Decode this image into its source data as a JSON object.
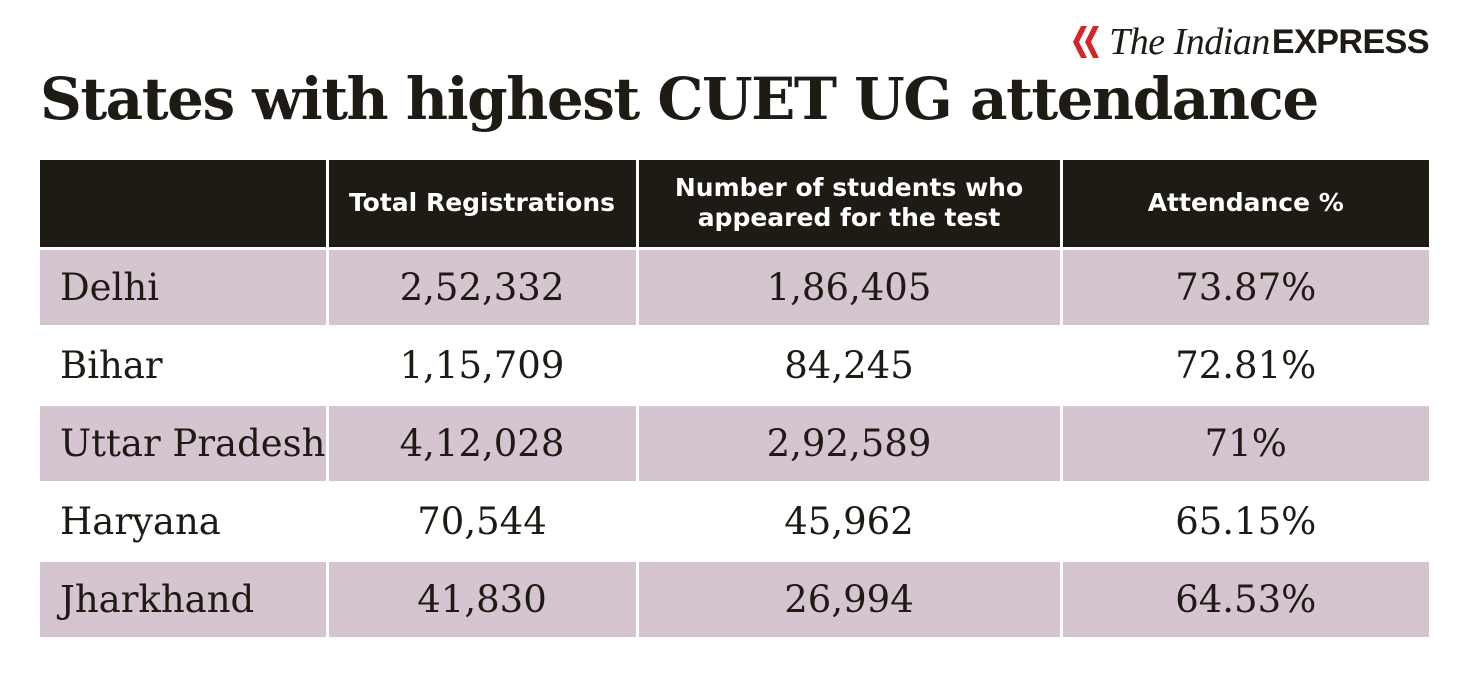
{
  "brand": {
    "serif_text": "The Indian",
    "bold_text": "EXPRESS",
    "accent_color": "#d6252a"
  },
  "chart_data": {
    "type": "table",
    "title": "States with highest CUET UG attendance",
    "columns": [
      "",
      "Total Registrations",
      "Number of students who appeared for the test",
      "Attendance %"
    ],
    "rows": [
      {
        "state": "Delhi",
        "total_registrations": "2,52,332",
        "appeared": "1,86,405",
        "attendance": "73.87%"
      },
      {
        "state": "Bihar",
        "total_registrations": "1,15,709",
        "appeared": "84,245",
        "attendance": "72.81%"
      },
      {
        "state": "Uttar Pradesh",
        "total_registrations": "4,12,028",
        "appeared": "2,92,589",
        "attendance": "71%"
      },
      {
        "state": "Haryana",
        "total_registrations": "70,544",
        "appeared": "45,962",
        "attendance": "65.15%"
      },
      {
        "state": "Jharkhand",
        "total_registrations": "41,830",
        "appeared": "26,994",
        "attendance": "64.53%"
      }
    ],
    "colors": {
      "header_bg": "#1e1a14",
      "row_shade": "#d4c5d0",
      "row_plain": "#ffffff"
    }
  }
}
